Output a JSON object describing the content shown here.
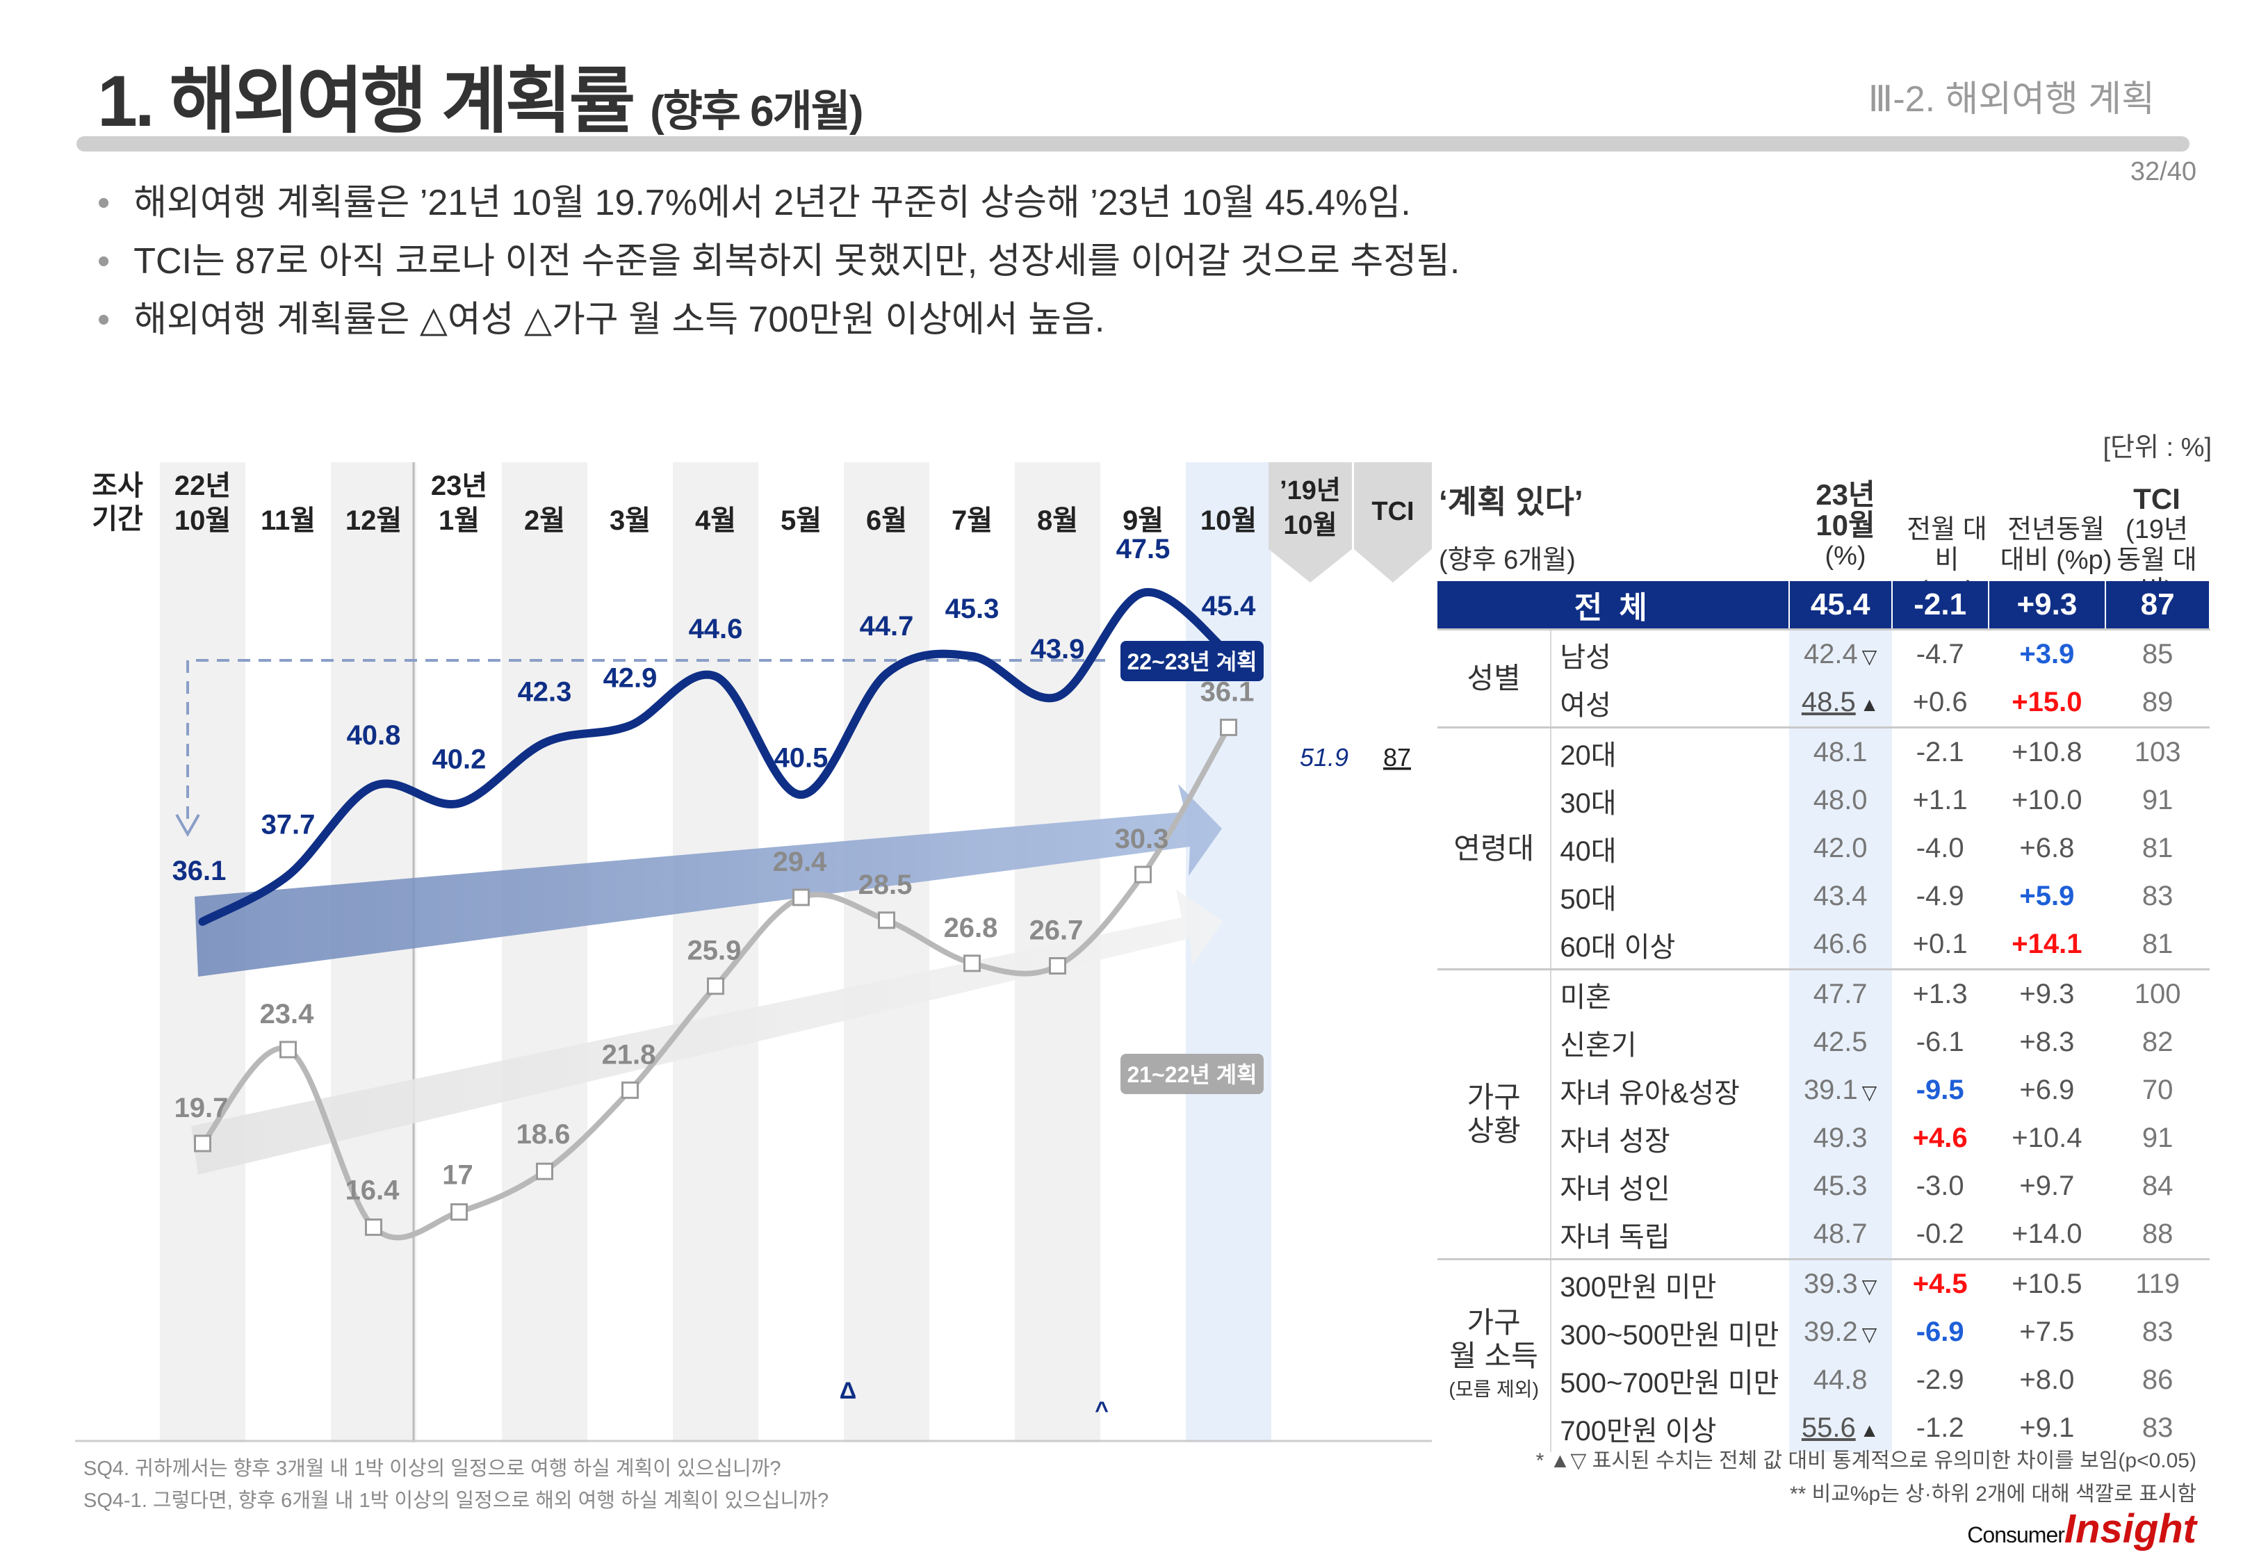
{
  "header": {
    "title": "1. 해외여행 계획률",
    "title_sub": "(향후 6개월)",
    "section": "Ⅲ-2. 해외여행 계획",
    "page": "32/40"
  },
  "bullets": [
    "해외여행 계획률은 ’21년 10월 19.7%에서 2년간 꾸준히 상승해 ’23년 10월 45.4%임.",
    "TCI는 87로 아직 코로나 이전 수준을 회복하지 못했지만, 성장세를 이어갈 것으로 추정됨.",
    "해외여행 계획률은 △여성 △가구 월 소득 700만원 이상에서 높음."
  ],
  "unit_label": "[단위 : %]",
  "chart_data": {
    "type": "line",
    "title": "해외여행 계획률 (향후 6개월)",
    "period_label": [
      "조사",
      "기간"
    ],
    "categories": [
      [
        "22년",
        "10월"
      ],
      [
        "11월"
      ],
      [
        "12월"
      ],
      [
        "23년",
        "1월"
      ],
      [
        "2월"
      ],
      [
        "3월"
      ],
      [
        "4월"
      ],
      [
        "5월"
      ],
      [
        "6월"
      ],
      [
        "7월"
      ],
      [
        "8월"
      ],
      [
        "9월"
      ],
      [
        "10월"
      ]
    ],
    "series": [
      {
        "name": "22~23년 계획",
        "color": "#0f2f86",
        "values": [
          36.1,
          37.7,
          40.8,
          40.2,
          42.3,
          42.9,
          44.6,
          40.5,
          44.7,
          45.3,
          43.9,
          47.5,
          45.4
        ]
      },
      {
        "name": "21~22년 계획",
        "color": "#aaaaaa",
        "values": [
          19.7,
          23.4,
          16.4,
          17.0,
          18.6,
          21.8,
          25.9,
          29.4,
          28.5,
          26.8,
          26.7,
          30.3,
          36.1
        ]
      }
    ],
    "ref_column": {
      "label": [
        "’19년",
        "10월"
      ],
      "value": "51.9"
    },
    "tci_column": {
      "label": "TCI",
      "value": "87"
    },
    "ylim": [
      10,
      55
    ],
    "marks": [
      "Δ",
      "^"
    ]
  },
  "table": {
    "title": "‘계획 있다’",
    "subtitle": "(향후 6개월)",
    "headers": [
      [
        "23년",
        "10월",
        "(%)"
      ],
      [
        "전월 대비",
        "(%p)"
      ],
      [
        "전년동월",
        "대비 (%p)"
      ],
      [
        "TCI",
        "(19년",
        "동월 대비)"
      ]
    ],
    "total": {
      "label": "전 체",
      "val": "45.4",
      "mom": "-2.1",
      "yoy": "+9.3",
      "tci": "87"
    },
    "groups": [
      {
        "name": [
          "성별"
        ],
        "rows": [
          {
            "label": "남성",
            "val": "42.4",
            "sig": "▽",
            "mom": "-4.7",
            "yoy": "+3.9",
            "tci": "85",
            "yoy_style": "neg"
          },
          {
            "label": "여성",
            "val": "48.5",
            "sig": "▲",
            "underline": true,
            "mom": "+0.6",
            "yoy": "+15.0",
            "tci": "89",
            "yoy_style": "pos"
          }
        ]
      },
      {
        "name": [
          "연령대"
        ],
        "rows": [
          {
            "label": "20대",
            "val": "48.1",
            "mom": "-2.1",
            "yoy": "+10.8",
            "tci": "103"
          },
          {
            "label": "30대",
            "val": "48.0",
            "mom": "+1.1",
            "yoy": "+10.0",
            "tci": "91"
          },
          {
            "label": "40대",
            "val": "42.0",
            "mom": "-4.0",
            "yoy": "+6.8",
            "tci": "81"
          },
          {
            "label": "50대",
            "val": "43.4",
            "mom": "-4.9",
            "yoy": "+5.9",
            "tci": "83",
            "yoy_style": "neg"
          },
          {
            "label": "60대 이상",
            "val": "46.6",
            "mom": "+0.1",
            "yoy": "+14.1",
            "tci": "81",
            "yoy_style": "pos"
          }
        ]
      },
      {
        "name": [
          "가구",
          "상황"
        ],
        "rows": [
          {
            "label": "미혼",
            "val": "47.7",
            "mom": "+1.3",
            "yoy": "+9.3",
            "tci": "100"
          },
          {
            "label": "신혼기",
            "val": "42.5",
            "mom": "-6.1",
            "yoy": "+8.3",
            "tci": "82"
          },
          {
            "label": "자녀 유아&성장",
            "val": "39.1",
            "sig": "▽",
            "mom": "-9.5",
            "yoy": "+6.9",
            "tci": "70",
            "mom_style": "neg"
          },
          {
            "label": "자녀 성장",
            "val": "49.3",
            "mom": "+4.6",
            "yoy": "+10.4",
            "tci": "91",
            "mom_style": "pos"
          },
          {
            "label": "자녀 성인",
            "val": "45.3",
            "mom": "-3.0",
            "yoy": "+9.7",
            "tci": "84"
          },
          {
            "label": "자녀 독립",
            "val": "48.7",
            "mom": "-0.2",
            "yoy": "+14.0",
            "tci": "88"
          }
        ]
      },
      {
        "name": [
          "가구",
          "월 소득"
        ],
        "note": "(모름 제외)",
        "rows": [
          {
            "label": "300만원 미만",
            "val": "39.3",
            "sig": "▽",
            "mom": "+4.5",
            "yoy": "+10.5",
            "tci": "119",
            "mom_style": "pos"
          },
          {
            "label": "300~500만원 미만",
            "val": "39.2",
            "sig": "▽",
            "mom": "-6.9",
            "yoy": "+7.5",
            "tci": "83",
            "mom_style": "neg"
          },
          {
            "label": "500~700만원 미만",
            "val": "44.8",
            "mom": "-2.9",
            "yoy": "+8.0",
            "tci": "86"
          },
          {
            "label": "700만원 이상",
            "val": "55.6",
            "sig": "▲",
            "underline": true,
            "mom": "-1.2",
            "yoy": "+9.1",
            "tci": "83"
          }
        ]
      }
    ]
  },
  "footnotes": {
    "left": [
      "SQ4. 귀하께서는 향후 3개월 내 1박 이상의 일정으로 여행 하실 계획이 있으십니까?",
      "SQ4-1. 그렇다면, 향후 6개월 내 1박 이상의 일정으로 해외 여행 하실 계획이 있으십니까?"
    ],
    "right": [
      "* ▲▽ 표시된 수치는 전체 값 대비 통계적으로 유의미한 차이를 보임(p<0.05)",
      "** 비교%p는 상·하위 2개에 대해 색깔로 표시함"
    ]
  },
  "logo": {
    "top": "Consumer",
    "bottom": "Insight"
  }
}
